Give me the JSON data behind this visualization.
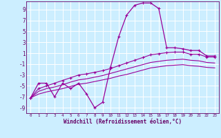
{
  "xlabel": "Windchill (Refroidissement éolien,°C)",
  "bg_color": "#cceeff",
  "grid_color": "#ffffff",
  "line_color": "#990099",
  "marker": "+",
  "marker_size": 3.5,
  "xlim": [
    -0.5,
    23.5
  ],
  "ylim": [
    -10,
    10.5
  ],
  "yticks": [
    -9,
    -7,
    -5,
    -3,
    -1,
    1,
    3,
    5,
    7,
    9
  ],
  "xticks": [
    0,
    1,
    2,
    3,
    4,
    5,
    6,
    7,
    8,
    9,
    10,
    11,
    12,
    13,
    14,
    15,
    16,
    17,
    18,
    19,
    20,
    21,
    22,
    23
  ],
  "series1": [
    [
      0,
      -7.2
    ],
    [
      1,
      -4.5
    ],
    [
      2,
      -4.5
    ],
    [
      3,
      -7.0
    ],
    [
      4,
      -4.5
    ],
    [
      5,
      -5.5
    ],
    [
      6,
      -4.5
    ],
    [
      7,
      -6.5
    ],
    [
      8,
      -9.0
    ],
    [
      9,
      -8.0
    ],
    [
      10,
      -1.5
    ],
    [
      11,
      4.0
    ],
    [
      12,
      8.0
    ],
    [
      13,
      9.8
    ],
    [
      14,
      10.2
    ],
    [
      15,
      10.2
    ],
    [
      16,
      9.2
    ],
    [
      17,
      2.0
    ],
    [
      18,
      2.0
    ],
    [
      19,
      1.8
    ],
    [
      20,
      1.5
    ],
    [
      21,
      1.5
    ],
    [
      22,
      0.5
    ],
    [
      23,
      0.5
    ]
  ],
  "series2": [
    [
      0,
      -7.2
    ],
    [
      1,
      -5.5
    ],
    [
      2,
      -5.0
    ],
    [
      3,
      -4.5
    ],
    [
      4,
      -4.0
    ],
    [
      5,
      -3.5
    ],
    [
      6,
      -3.0
    ],
    [
      7,
      -2.8
    ],
    [
      8,
      -2.5
    ],
    [
      9,
      -2.2
    ],
    [
      10,
      -1.8
    ],
    [
      11,
      -1.3
    ],
    [
      12,
      -0.8
    ],
    [
      13,
      -0.3
    ],
    [
      14,
      0.2
    ],
    [
      15,
      0.7
    ],
    [
      16,
      0.9
    ],
    [
      17,
      1.1
    ],
    [
      18,
      1.2
    ],
    [
      19,
      1.2
    ],
    [
      20,
      0.8
    ],
    [
      21,
      0.8
    ],
    [
      22,
      0.3
    ],
    [
      23,
      0.3
    ]
  ],
  "series3": [
    [
      0,
      -7.2
    ],
    [
      1,
      -6.0
    ],
    [
      2,
      -5.5
    ],
    [
      3,
      -5.2
    ],
    [
      4,
      -4.8
    ],
    [
      5,
      -4.3
    ],
    [
      6,
      -3.9
    ],
    [
      7,
      -3.7
    ],
    [
      8,
      -3.4
    ],
    [
      9,
      -3.1
    ],
    [
      10,
      -2.7
    ],
    [
      11,
      -2.3
    ],
    [
      12,
      -1.9
    ],
    [
      13,
      -1.5
    ],
    [
      14,
      -1.1
    ],
    [
      15,
      -0.7
    ],
    [
      16,
      -0.5
    ],
    [
      17,
      -0.3
    ],
    [
      18,
      -0.2
    ],
    [
      19,
      -0.1
    ],
    [
      20,
      -0.3
    ],
    [
      21,
      -0.4
    ],
    [
      22,
      -0.7
    ],
    [
      23,
      -0.8
    ]
  ],
  "series4": [
    [
      0,
      -7.2
    ],
    [
      1,
      -6.5
    ],
    [
      2,
      -6.1
    ],
    [
      3,
      -5.8
    ],
    [
      4,
      -5.5
    ],
    [
      5,
      -5.1
    ],
    [
      6,
      -4.7
    ],
    [
      7,
      -4.5
    ],
    [
      8,
      -4.2
    ],
    [
      9,
      -3.9
    ],
    [
      10,
      -3.6
    ],
    [
      11,
      -3.2
    ],
    [
      12,
      -2.9
    ],
    [
      13,
      -2.5
    ],
    [
      14,
      -2.1
    ],
    [
      15,
      -1.7
    ],
    [
      16,
      -1.5
    ],
    [
      17,
      -1.3
    ],
    [
      18,
      -1.2
    ],
    [
      19,
      -1.1
    ],
    [
      20,
      -1.3
    ],
    [
      21,
      -1.4
    ],
    [
      22,
      -1.6
    ],
    [
      23,
      -1.7
    ]
  ]
}
